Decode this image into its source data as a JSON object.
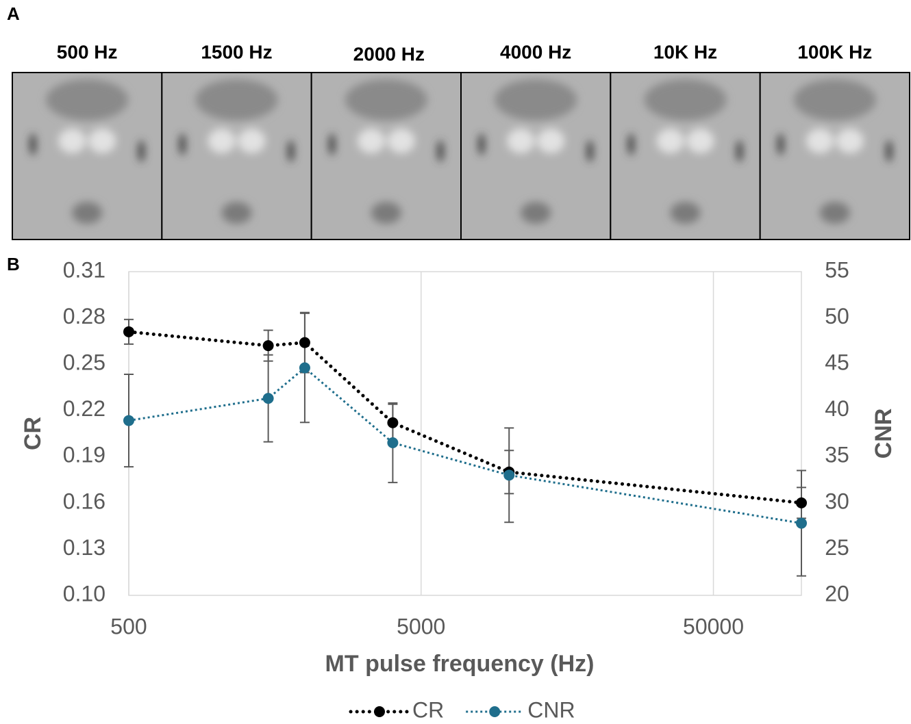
{
  "panel_labels": [
    "A",
    "B"
  ],
  "images": [
    "500 Hz",
    "1500 Hz",
    "2000 Hz",
    "4000 Hz",
    "10K Hz",
    "100K Hz"
  ],
  "chart_data": {
    "type": "line",
    "x": [
      500,
      1500,
      2000,
      4000,
      10000,
      100000
    ],
    "xscale": "log",
    "xlim": [
      500,
      100000
    ],
    "xticks": [
      500,
      5000,
      50000
    ],
    "ylim": [
      0.1,
      0.31
    ],
    "yticks": [
      {
        "value": 0.1,
        "label": "0.10"
      },
      0.13,
      0.16,
      0.19,
      0.22,
      0.25,
      0.28,
      0.31
    ],
    "y2lim": [
      20,
      55
    ],
    "y2ticks": [
      20,
      25,
      30,
      35,
      40,
      45,
      50,
      55
    ],
    "xlabel": "MT pulse frequency (Hz)",
    "ylabel": "CR",
    "y2label": "CNR",
    "grid": "x",
    "legend": "bottom",
    "series": [
      {
        "name": "CR",
        "color": "#000000",
        "values": [
          0.271,
          0.262,
          0.264,
          0.212,
          0.18,
          0.16
        ],
        "errors": [
          0.008,
          0.01,
          0.0195,
          0.012,
          0.014,
          0.01
        ]
      },
      {
        "name": "CNR",
        "color": "#1f6e8c",
        "axis": "y2",
        "values": [
          38.9,
          41.3,
          44.6,
          36.5,
          33.0,
          27.8
        ],
        "errors": [
          5.0,
          4.7,
          5.9,
          4.3,
          5.1,
          5.7
        ]
      }
    ]
  }
}
